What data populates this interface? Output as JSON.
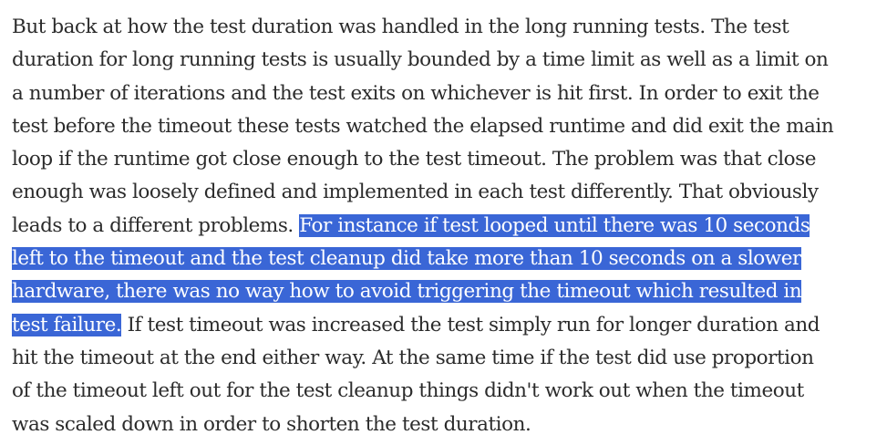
{
  "highlight_color": "#3a66d6",
  "text_color": "#2b2b2b",
  "lines": [
    [
      {
        "text": "But back at how the test duration was handled in the long running tests. The test",
        "selected": false
      }
    ],
    [
      {
        "text": "duration for long running tests is usually bounded by a time limit as well as a limit on",
        "selected": false
      }
    ],
    [
      {
        "text": "a number of iterations and the test exits on whichever is hit first. In order to exit the",
        "selected": false
      }
    ],
    [
      {
        "text": "test before the timeout these tests watched the elapsed runtime and did exit the main",
        "selected": false
      }
    ],
    [
      {
        "text": "loop if the runtime got close enough to the test timeout. The problem was that close",
        "selected": false
      }
    ],
    [
      {
        "text": "enough was loosely defined and implemented in each test differently. That obviously",
        "selected": false
      }
    ],
    [
      {
        "text": "leads to a different problems. ",
        "selected": false
      },
      {
        "text": "For instance if test looped until there was 10 seconds",
        "selected": true
      }
    ],
    [
      {
        "text": "left to the timeout and the test cleanup did take more than 10 seconds on a slower",
        "selected": true
      }
    ],
    [
      {
        "text": "hardware, there was no way how to avoid triggering the timeout which resulted in",
        "selected": true
      }
    ],
    [
      {
        "text": "test failure.",
        "selected": true
      },
      {
        "text": " If test timeout was increased the test simply run for longer duration and",
        "selected": false
      }
    ],
    [
      {
        "text": "hit the timeout at the end either way. At the same time if the test did use proportion",
        "selected": false
      }
    ],
    [
      {
        "text": "of the timeout left out for the test cleanup things didn't work out when the timeout",
        "selected": false
      }
    ],
    [
      {
        "text": "was scaled down in order to shorten the test duration.",
        "selected": false
      }
    ]
  ]
}
